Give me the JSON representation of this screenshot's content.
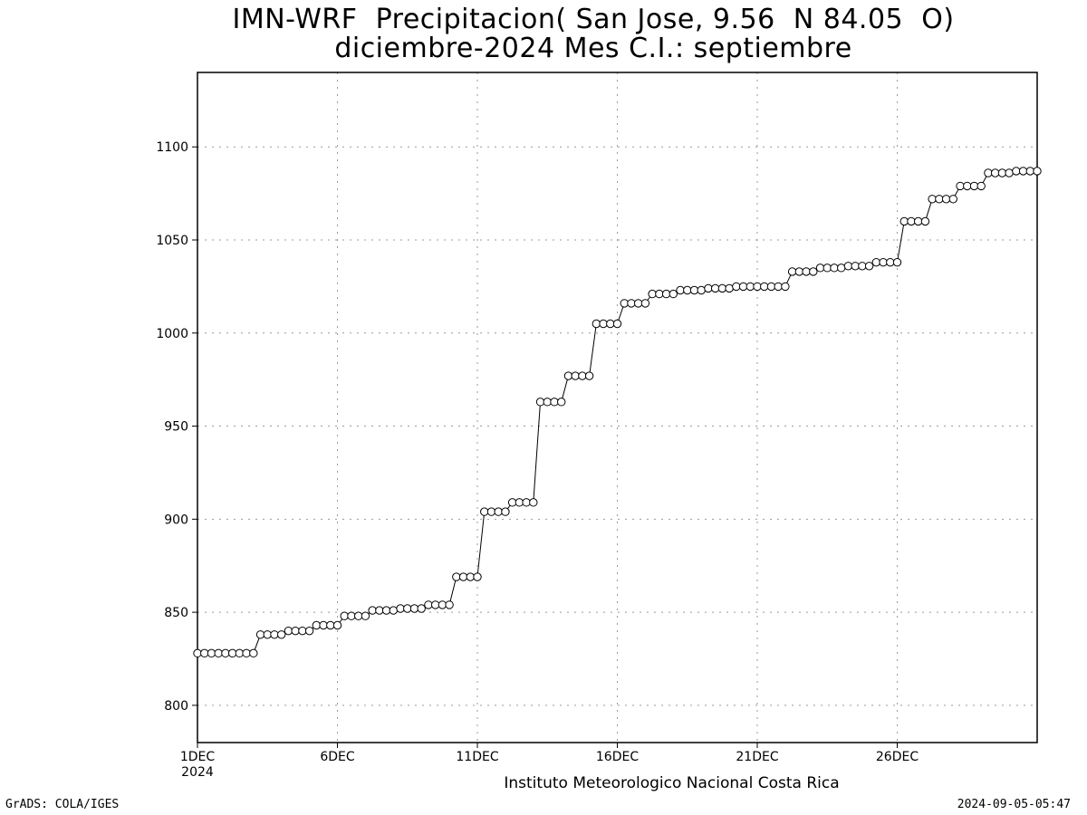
{
  "chart_data": {
    "type": "line",
    "title": "IMN-WRF  Precipitacion( San Jose, 9.56  N 84.05  O)",
    "subtitle": "diciembre-2024 Mes C.I.: septiembre",
    "credit": "Instituto Meteorologico Nacional Costa Rica",
    "xlabel": "",
    "ylabel": "",
    "ylim": [
      780,
      1140
    ],
    "xlim_days": [
      1,
      31
    ],
    "grid": true,
    "marker": "open-circle",
    "y_ticks": [
      800,
      850,
      900,
      950,
      1000,
      1050,
      1100
    ],
    "x_ticks": [
      {
        "day": 1,
        "label": "1DEC",
        "sublabel": "2024"
      },
      {
        "day": 6,
        "label": "6DEC",
        "sublabel": ""
      },
      {
        "day": 11,
        "label": "11DEC",
        "sublabel": ""
      },
      {
        "day": 16,
        "label": "16DEC",
        "sublabel": ""
      },
      {
        "day": 21,
        "label": "21DEC",
        "sublabel": ""
      },
      {
        "day": 26,
        "label": "26DEC",
        "sublabel": ""
      }
    ],
    "series": [
      {
        "color": "#000000",
        "x": [
          1.0,
          1.25,
          1.5,
          1.75,
          2.0,
          2.25,
          2.5,
          2.75,
          3.0,
          3.25,
          3.5,
          3.75,
          4.0,
          4.25,
          4.5,
          4.75,
          5.0,
          5.25,
          5.5,
          5.75,
          6.0,
          6.25,
          6.5,
          6.75,
          7.0,
          7.25,
          7.5,
          7.75,
          8.0,
          8.25,
          8.5,
          8.75,
          9.0,
          9.25,
          9.5,
          9.75,
          10.0,
          10.25,
          10.5,
          10.75,
          11.0,
          11.25,
          11.5,
          11.75,
          12.0,
          12.25,
          12.5,
          12.75,
          13.0,
          13.25,
          13.5,
          13.75,
          14.0,
          14.25,
          14.5,
          14.75,
          15.0,
          15.25,
          15.5,
          15.75,
          16.0,
          16.25,
          16.5,
          16.75,
          17.0,
          17.25,
          17.5,
          17.75,
          18.0,
          18.25,
          18.5,
          18.75,
          19.0,
          19.25,
          19.5,
          19.75,
          20.0,
          20.25,
          20.5,
          20.75,
          21.0,
          21.25,
          21.5,
          21.75,
          22.0,
          22.25,
          22.5,
          22.75,
          23.0,
          23.25,
          23.5,
          23.75,
          24.0,
          24.25,
          24.5,
          24.75,
          25.0,
          25.25,
          25.5,
          25.75,
          26.0,
          26.25,
          26.5,
          26.75,
          27.0,
          27.25,
          27.5,
          27.75,
          28.0,
          28.25,
          28.5,
          28.75,
          29.0,
          29.25,
          29.5,
          29.75,
          30.0,
          30.25,
          30.5,
          30.75,
          31.0
        ],
        "y": [
          828,
          828,
          828,
          828,
          828,
          828,
          828,
          828,
          828,
          838,
          838,
          838,
          838,
          840,
          840,
          840,
          840,
          843,
          843,
          843,
          843,
          848,
          848,
          848,
          848,
          851,
          851,
          851,
          851,
          852,
          852,
          852,
          852,
          854,
          854,
          854,
          854,
          869,
          869,
          869,
          869,
          904,
          904,
          904,
          904,
          909,
          909,
          909,
          909,
          963,
          963,
          963,
          963,
          977,
          977,
          977,
          977,
          1005,
          1005,
          1005,
          1005,
          1016,
          1016,
          1016,
          1016,
          1021,
          1021,
          1021,
          1021,
          1023,
          1023,
          1023,
          1023,
          1024,
          1024,
          1024,
          1024,
          1025,
          1025,
          1025,
          1025,
          1025,
          1025,
          1025,
          1025,
          1033,
          1033,
          1033,
          1033,
          1035,
          1035,
          1035,
          1035,
          1036,
          1036,
          1036,
          1036,
          1038,
          1038,
          1038,
          1038,
          1060,
          1060,
          1060,
          1060,
          1072,
          1072,
          1072,
          1072,
          1079,
          1079,
          1079,
          1079,
          1086,
          1086,
          1086,
          1086,
          1087,
          1087,
          1087,
          1087
        ]
      }
    ]
  },
  "footer": {
    "left": "GrADS: COLA/IGES",
    "right": "2024-09-05-05:47"
  }
}
